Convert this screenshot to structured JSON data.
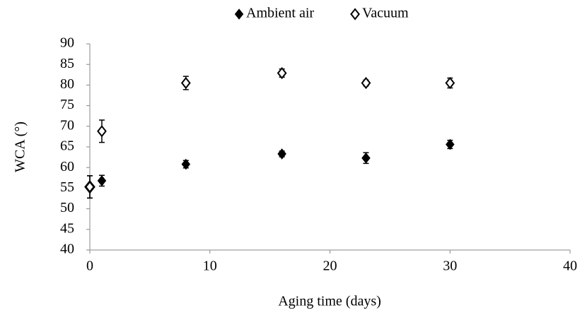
{
  "chart_data": {
    "type": "scatter",
    "xlabel": "Aging time (days)",
    "ylabel": "WCA (°)",
    "xlim": [
      0,
      40
    ],
    "xticks": [
      0,
      10,
      20,
      30,
      40
    ],
    "ylim": [
      40,
      90
    ],
    "yticks": [
      40,
      45,
      50,
      55,
      60,
      65,
      70,
      75,
      80,
      85,
      90
    ],
    "legend": "top",
    "series": [
      {
        "name": "Ambient air",
        "color": "#000000",
        "marker": "filled-diamond",
        "x": [
          0,
          1,
          8,
          16,
          23,
          30
        ],
        "values": [
          55.3,
          56.8,
          60.8,
          63.3,
          62.3,
          65.6
        ],
        "errors": [
          2.7,
          1.3,
          0.9,
          0.7,
          1.3,
          1.0
        ]
      },
      {
        "name": "Vacuum",
        "color": "#000000",
        "marker": "hollow-diamond",
        "x": [
          0,
          1,
          8,
          16,
          23,
          30
        ],
        "values": [
          55.3,
          68.8,
          80.5,
          82.9,
          80.5,
          80.5
        ],
        "errors": [
          2.7,
          2.7,
          1.6,
          1.0,
          0.7,
          1.2
        ]
      }
    ]
  }
}
